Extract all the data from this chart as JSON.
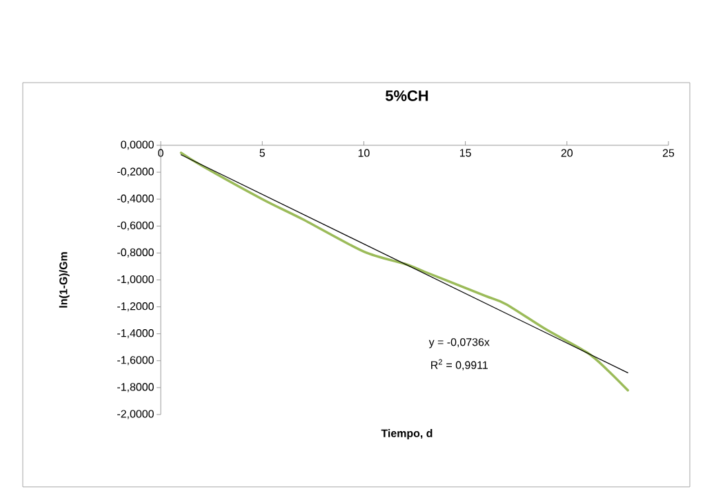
{
  "chart_data": {
    "type": "line",
    "title": "5%CH",
    "xlabel": "Tiempo, d",
    "ylabel": "ln(1-G)/Gm",
    "series": [
      {
        "color": "#9bbb59",
        "x": [
          1,
          2,
          5,
          7,
          10,
          12,
          13,
          14,
          16,
          17,
          19,
          21,
          22,
          23
        ],
        "values": [
          -0.056,
          -0.15,
          -0.4,
          -0.55,
          -0.79,
          -0.88,
          -0.94,
          -1.0,
          -1.12,
          -1.18,
          -1.37,
          -1.54,
          -1.67,
          -1.82
        ]
      },
      {
        "color": "#000000",
        "x": [
          1,
          23
        ],
        "values": [
          -0.07,
          -1.69
        ]
      }
    ],
    "xlim": [
      0,
      25
    ],
    "ylim": [
      -2,
      0
    ],
    "xticks": [
      0,
      5,
      10,
      15,
      20,
      25
    ],
    "yticks": [
      {
        "value": -2,
        "label": "-2,0000"
      },
      {
        "value": -1.8,
        "label": "-1,8000"
      },
      {
        "value": -1.6,
        "label": "-1,6000"
      },
      {
        "value": -1.4,
        "label": "-1,4000"
      },
      {
        "value": -1.2,
        "label": "-1,2000"
      },
      {
        "value": -1.0,
        "label": "-1,0000"
      },
      {
        "value": -0.8,
        "label": "-0,8000"
      },
      {
        "value": -0.6,
        "label": "-0,6000"
      },
      {
        "value": -0.4,
        "label": "-0,4000"
      },
      {
        "value": -0.2,
        "label": "-0,2000"
      },
      {
        "value": 0,
        "label": "0,0000"
      }
    ],
    "annotations": [
      "y = -0,0736x",
      "R$^{2}$ = 0,9911"
    ],
    "grid": false,
    "marker": "none",
    "line_style": "solid"
  }
}
